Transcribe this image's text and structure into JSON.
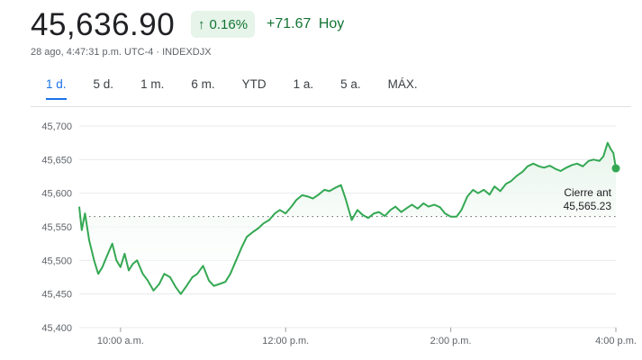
{
  "quote": {
    "price": "45,636.90",
    "percent_change": "0.16%",
    "percent_arrow_icon": "arrow-up-icon",
    "abs_change": "+71.67",
    "period_label": "Hoy",
    "timestamp_line": "28 ago, 4:47:31 p.m. UTC-4 · INDEXDJX"
  },
  "tabs": [
    {
      "label": "1 d.",
      "active": true
    },
    {
      "label": "5 d.",
      "active": false
    },
    {
      "label": "1 m.",
      "active": false
    },
    {
      "label": "6 m.",
      "active": false
    },
    {
      "label": "YTD",
      "active": false
    },
    {
      "label": "1 a.",
      "active": false
    },
    {
      "label": "5 a.",
      "active": false
    },
    {
      "label": "MÁX.",
      "active": false
    }
  ],
  "colors": {
    "line": "#34a853",
    "fill": "#e6f4ea",
    "up_text": "#137333",
    "active_tab": "#1a73e8",
    "grid": "#e8eaed"
  },
  "chart_data": {
    "type": "line",
    "y_ticks": [
      "45,700",
      "45,650",
      "45,600",
      "45,550",
      "45,500",
      "45,450",
      "45,400"
    ],
    "x_ticks": [
      "10:00 a.m.",
      "12:00 p.m.",
      "2:00 p.m.",
      "4:00 p.m."
    ],
    "ylim": [
      45400,
      45700
    ],
    "xlim": [
      9.5,
      16.0
    ],
    "grid": true,
    "reference_line": {
      "label": "Cierre ant",
      "value_text": "45,565.23",
      "value": 45565.23
    },
    "last_value": 45636.9,
    "series": [
      {
        "x": [
          9.5,
          9.53,
          9.57,
          9.62,
          9.68,
          9.73,
          9.78,
          9.83,
          9.9,
          9.95,
          10.0,
          10.05,
          10.1,
          10.15,
          10.2,
          10.27,
          10.33,
          10.4,
          10.47,
          10.53,
          10.6,
          10.67,
          10.73,
          10.8,
          10.87,
          10.93,
          11.0,
          11.07,
          11.13,
          11.2,
          11.27,
          11.33,
          11.4,
          11.47,
          11.53,
          11.6,
          11.67,
          11.73,
          11.8,
          11.87,
          11.93,
          12.0,
          12.07,
          12.13,
          12.2,
          12.27,
          12.33,
          12.4,
          12.47,
          12.53,
          12.6,
          12.67,
          12.73,
          12.8,
          12.87,
          12.93,
          13.0,
          13.07,
          13.13,
          13.2,
          13.27,
          13.33,
          13.4,
          13.47,
          13.53,
          13.6,
          13.67,
          13.73,
          13.8,
          13.87,
          13.93,
          14.0,
          14.07,
          14.13,
          14.2,
          14.27,
          14.33,
          14.4,
          14.47,
          14.53,
          14.6,
          14.67,
          14.73,
          14.8,
          14.87,
          14.93,
          15.0,
          15.07,
          15.13,
          15.2,
          15.27,
          15.33,
          15.4,
          15.47,
          15.53,
          15.6,
          15.67,
          15.73,
          15.8,
          15.85,
          15.9,
          15.94,
          15.97,
          16.0
        ],
        "y": [
          45580,
          45545,
          45570,
          45530,
          45500,
          45480,
          45490,
          45505,
          45525,
          45500,
          45490,
          45510,
          45485,
          45495,
          45500,
          45480,
          45470,
          45455,
          45465,
          45480,
          45475,
          45460,
          45450,
          45462,
          45475,
          45480,
          45492,
          45470,
          45462,
          45465,
          45468,
          45480,
          45500,
          45520,
          45535,
          45542,
          45548,
          45555,
          45560,
          45570,
          45575,
          45570,
          45580,
          45590,
          45597,
          45595,
          45592,
          45598,
          45605,
          45603,
          45608,
          45612,
          45590,
          45560,
          45575,
          45568,
          45563,
          45570,
          45572,
          45566,
          45575,
          45580,
          45572,
          45578,
          45583,
          45577,
          45585,
          45580,
          45583,
          45579,
          45570,
          45565,
          45565,
          45575,
          45595,
          45605,
          45600,
          45605,
          45598,
          45610,
          45603,
          45614,
          45618,
          45626,
          45632,
          45640,
          45644,
          45640,
          45638,
          45641,
          45636,
          45633,
          45638,
          45642,
          45644,
          45640,
          45648,
          45650,
          45648,
          45655,
          45675,
          45665,
          45660,
          45637
        ]
      }
    ]
  }
}
